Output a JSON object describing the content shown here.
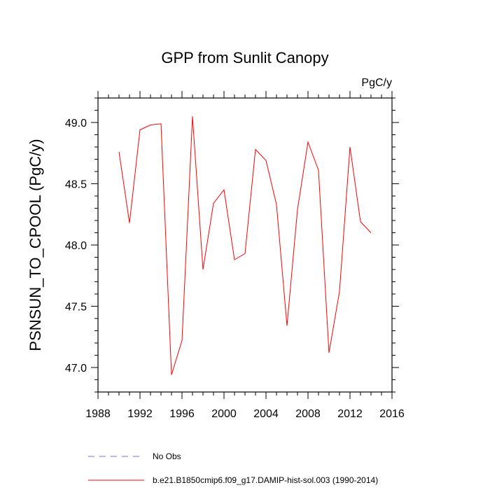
{
  "chart_data": {
    "type": "line",
    "title": "GPP from Sunlit Canopy",
    "units": "PgC/y",
    "ylabel": "PSNSUN_TO_CPOOL  (PgC/y)",
    "xlabel": "",
    "xlim": [
      1988,
      2016
    ],
    "ylim": [
      46.8,
      49.2
    ],
    "x_ticks": [
      1988,
      1992,
      1996,
      2000,
      2004,
      2008,
      2012,
      2016
    ],
    "y_ticks": [
      47.0,
      47.5,
      48.0,
      48.5,
      49.0
    ],
    "grid": false,
    "legend_position": "bottom",
    "series": [
      {
        "name": "b.e21.B1850cmip6.f09_g17.DAMIP-hist-sol.003 (1990-2014)",
        "color": "#ff0000",
        "style": "solid",
        "x": [
          1990,
          1991,
          1992,
          1993,
          1994,
          1995,
          1996,
          1997,
          1998,
          1999,
          2000,
          2001,
          2002,
          2003,
          2004,
          2005,
          2006,
          2007,
          2008,
          2009,
          2010,
          2011,
          2012,
          2013,
          2014
        ],
        "values": [
          48.76,
          48.18,
          48.94,
          48.98,
          48.99,
          46.94,
          47.22,
          49.05,
          47.8,
          48.34,
          48.45,
          47.88,
          47.93,
          48.78,
          48.69,
          48.33,
          47.34,
          48.29,
          48.84,
          48.61,
          47.12,
          47.62,
          48.8,
          48.19,
          48.1
        ]
      }
    ],
    "legend": [
      {
        "label": "No Obs",
        "color": "#6f6fff",
        "style": "dashed"
      },
      {
        "label": "b.e21.B1850cmip6.f09_g17.DAMIP-hist-sol.003 (1990-2014)",
        "color": "#ff0000",
        "style": "solid"
      }
    ]
  }
}
